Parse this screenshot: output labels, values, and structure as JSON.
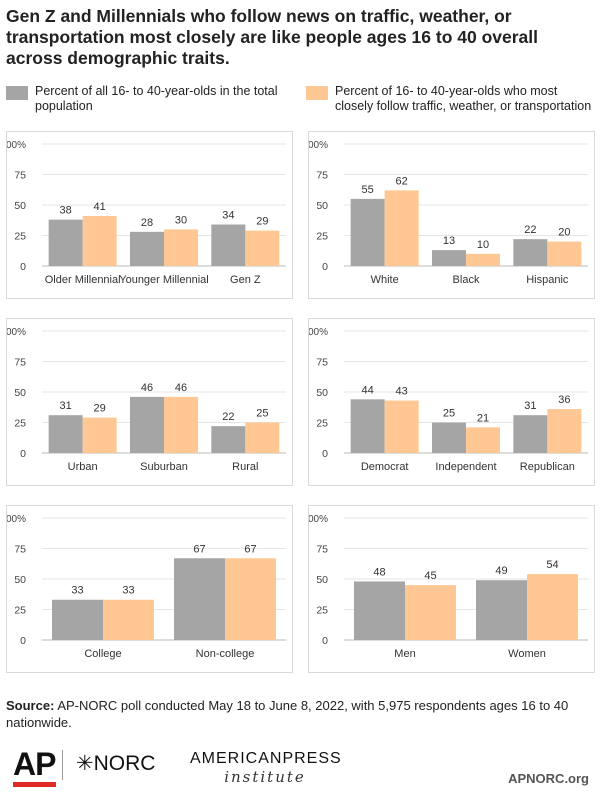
{
  "title": "Gen Z and Millennials who follow news on traffic, weather, or transportation most closely are like people ages 16 to 40 overall across demographic traits.",
  "legend": [
    {
      "label": "Percent of all 16- to 40-year-olds in the total population",
      "color": "#a5a5a5"
    },
    {
      "label": "Percent of 16- to 40-year-olds who most closely follow traffic, weather, or transportation",
      "color": "#ffc793"
    }
  ],
  "colors": {
    "series1": "#a5a5a5",
    "series2": "#ffc793",
    "grid": "#e6e6e6",
    "axis": "#bbbbbb"
  },
  "chart_data": [
    {
      "type": "bar",
      "categories": [
        "Older Millennial",
        "Younger Millennial",
        "Gen Z"
      ],
      "series": [
        {
          "name": "Percent of all 16- to 40-year-olds in the total population",
          "values": [
            38,
            28,
            34
          ]
        },
        {
          "name": "Percent of 16- to 40-year-olds who most closely follow traffic, weather, or transportation",
          "values": [
            41,
            30,
            29
          ]
        }
      ],
      "ylim": [
        0,
        100
      ],
      "yticks": [
        "0",
        "25",
        "50",
        "75",
        "100%"
      ]
    },
    {
      "type": "bar",
      "categories": [
        "White",
        "Black",
        "Hispanic"
      ],
      "series": [
        {
          "name": "Percent of all 16- to 40-year-olds in the total population",
          "values": [
            55,
            13,
            22
          ]
        },
        {
          "name": "Percent of 16- to 40-year-olds who most closely follow traffic, weather, or transportation",
          "values": [
            62,
            10,
            20
          ]
        }
      ],
      "ylim": [
        0,
        100
      ],
      "yticks": [
        "0",
        "25",
        "50",
        "75",
        "100%"
      ]
    },
    {
      "type": "bar",
      "categories": [
        "Urban",
        "Suburban",
        "Rural"
      ],
      "series": [
        {
          "name": "Percent of all 16- to 40-year-olds in the total population",
          "values": [
            31,
            46,
            22
          ]
        },
        {
          "name": "Percent of 16- to 40-year-olds who most closely follow traffic, weather, or transportation",
          "values": [
            29,
            46,
            25
          ]
        }
      ],
      "ylim": [
        0,
        100
      ],
      "yticks": [
        "0",
        "25",
        "50",
        "75",
        "100%"
      ]
    },
    {
      "type": "bar",
      "categories": [
        "Democrat",
        "Independent",
        "Republican"
      ],
      "series": [
        {
          "name": "Percent of all 16- to 40-year-olds in the total population",
          "values": [
            44,
            25,
            31
          ]
        },
        {
          "name": "Percent of 16- to 40-year-olds who most closely follow traffic, weather, or transportation",
          "values": [
            43,
            21,
            36
          ]
        }
      ],
      "ylim": [
        0,
        100
      ],
      "yticks": [
        "0",
        "25",
        "50",
        "75",
        "100%"
      ]
    },
    {
      "type": "bar",
      "categories": [
        "College",
        "Non-college"
      ],
      "series": [
        {
          "name": "Percent of all 16- to 40-year-olds in the total population",
          "values": [
            33,
            67
          ]
        },
        {
          "name": "Percent of 16- to 40-year-olds who most closely follow traffic, weather, or transportation",
          "values": [
            33,
            67
          ]
        }
      ],
      "ylim": [
        0,
        100
      ],
      "yticks": [
        "0",
        "25",
        "50",
        "75",
        "100%"
      ]
    },
    {
      "type": "bar",
      "categories": [
        "Men",
        "Women"
      ],
      "series": [
        {
          "name": "Percent of all 16- to 40-year-olds in the total population",
          "values": [
            48,
            49
          ]
        },
        {
          "name": "Percent of 16- to 40-year-olds who most closely follow traffic, weather, or transportation",
          "values": [
            45,
            54
          ]
        }
      ],
      "ylim": [
        0,
        100
      ],
      "yticks": [
        "0",
        "25",
        "50",
        "75",
        "100%"
      ]
    }
  ],
  "source": {
    "label": "Source:",
    "text": "AP-NORC poll conducted May 18 to June 8, 2022, with 5,975 respondents ages 16 to 40 nationwide."
  },
  "logos": {
    "ap": "AP",
    "norc": "NORC",
    "api_line1": "AMERICANPRESS",
    "api_line2": "institute"
  },
  "site": "APNORC.org"
}
